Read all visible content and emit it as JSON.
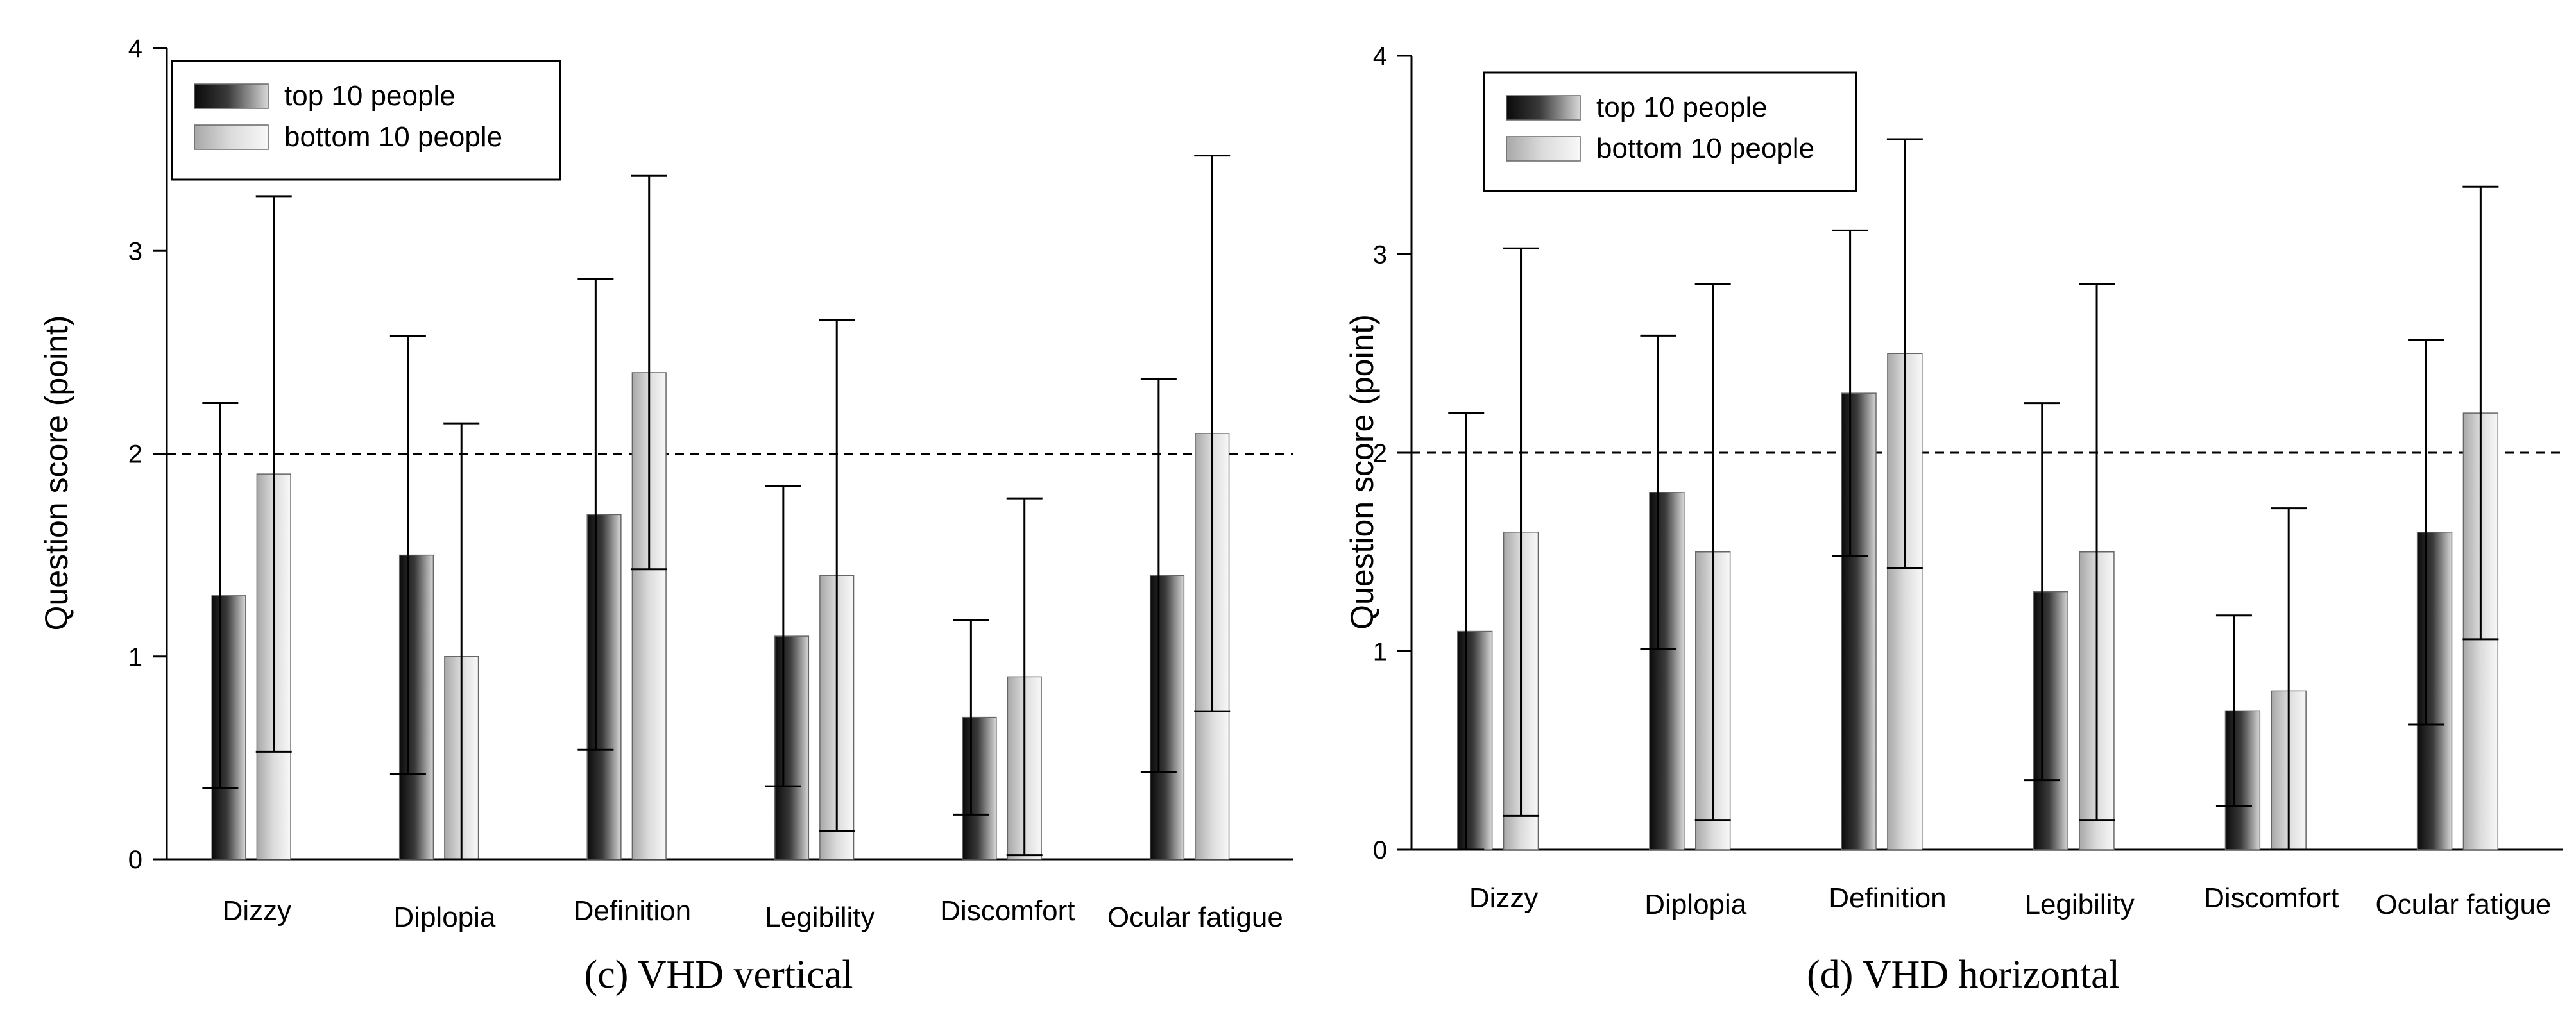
{
  "chart_data": [
    {
      "type": "bar",
      "caption": "(c) VHD vertical",
      "ylabel": "Question score (point)",
      "xlabel": "",
      "ylim": [
        0,
        4
      ],
      "yticks": [
        "0",
        "1",
        "2",
        "3",
        "4"
      ],
      "reference_line": 2,
      "categories": [
        "Dizzy",
        "Diplopia",
        "Definition",
        "Legibility",
        "Discomfort",
        "Ocular fatigue"
      ],
      "series": [
        {
          "name": "top 10 people",
          "values": [
            1.3,
            1.5,
            1.7,
            1.1,
            0.7,
            1.4
          ],
          "error_low": [
            0.35,
            0.42,
            0.54,
            0.36,
            0.22,
            0.43
          ],
          "error_high": [
            2.25,
            2.58,
            2.86,
            1.84,
            1.18,
            2.37
          ]
        },
        {
          "name": "bottom 10 people",
          "values": [
            1.9,
            1.0,
            2.4,
            1.4,
            0.9,
            2.1
          ],
          "error_low": [
            0.53,
            0.0,
            1.43,
            0.14,
            0.02,
            0.73
          ],
          "error_high": [
            3.27,
            2.15,
            3.37,
            2.66,
            1.78,
            3.47
          ]
        }
      ],
      "legend": [
        "top 10 people",
        "bottom 10 people"
      ]
    },
    {
      "type": "bar",
      "caption": "(d) VHD horizontal",
      "ylabel": "Question score (point)",
      "xlabel": "",
      "ylim": [
        0,
        4
      ],
      "yticks": [
        "0",
        "1",
        "2",
        "3",
        "4"
      ],
      "reference_line": 2,
      "categories": [
        "Dizzy",
        "Diplopia",
        "Definition",
        "Legibility",
        "Discomfort",
        "Ocular fatigue"
      ],
      "series": [
        {
          "name": "top 10 people",
          "values": [
            1.1,
            1.8,
            2.3,
            1.3,
            0.7,
            1.6
          ],
          "error_low": [
            0.0,
            1.01,
            1.48,
            0.35,
            0.22,
            0.63
          ],
          "error_high": [
            2.2,
            2.59,
            3.12,
            2.25,
            1.18,
            2.57
          ]
        },
        {
          "name": "bottom 10 people",
          "values": [
            1.6,
            1.5,
            2.5,
            1.5,
            0.8,
            2.2
          ],
          "error_low": [
            0.17,
            0.15,
            1.42,
            0.15,
            0.0,
            1.06
          ],
          "error_high": [
            3.03,
            2.85,
            3.58,
            2.85,
            1.72,
            3.34
          ]
        }
      ],
      "legend": [
        "top 10 people",
        "bottom 10 people"
      ]
    }
  ]
}
